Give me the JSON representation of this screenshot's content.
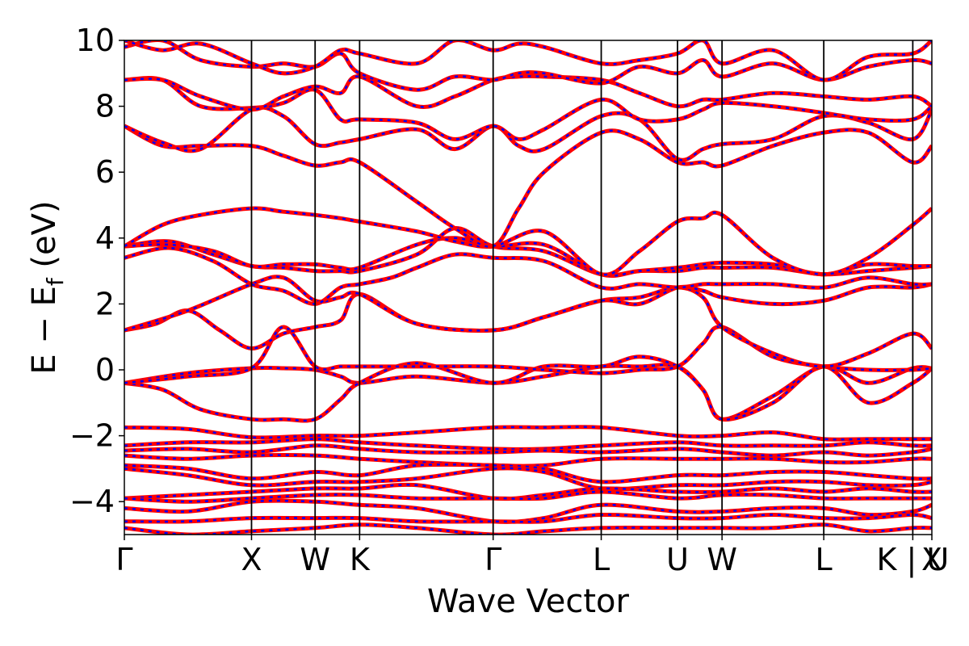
{
  "chart_data": {
    "type": "line",
    "title": "",
    "xlabel": "Wave Vector",
    "ylabel": "E − E",
    "ylabel_subscript": "f",
    "ylabel_unit": " (eV)",
    "ylim": [
      -5,
      10
    ],
    "yticks": [
      -4,
      -2,
      0,
      2,
      4,
      6,
      8,
      10
    ],
    "ytick_labels": [
      "−4",
      "−2",
      "0",
      "2",
      "4",
      "6",
      "8",
      "10"
    ],
    "xticks": [
      0,
      1,
      1.5,
      1.85,
      2.9,
      3.75,
      4.35,
      4.7,
      5.5,
      6.2,
      6.35
    ],
    "xtick_labels": [
      "Γ",
      "X",
      "W",
      "K",
      "Γ",
      "L",
      "U",
      "W",
      "L",
      "K | U",
      "X"
    ],
    "xlim": [
      0,
      6.35
    ],
    "grid": false,
    "legend": "none",
    "colors": {
      "band_solid": "#ff0000",
      "band_dashed": "#0000ff",
      "frame": "#000000"
    },
    "series": [
      {
        "x": [
          0,
          0.5,
          1,
          1.25,
          1.5,
          1.7,
          1.85,
          2.3,
          2.9,
          3.3,
          3.75,
          4.05,
          4.35,
          4.55,
          4.7,
          5.1,
          5.5,
          5.85,
          6.2,
          6.35
        ],
        "values": [
          -0.4,
          -0.1,
          0.05,
          0.05,
          0.0,
          -0.2,
          -0.4,
          -0.2,
          -0.4,
          -0.2,
          0.1,
          0.1,
          0.1,
          -0.6,
          -1.5,
          -0.8,
          0.1,
          -0.4,
          0.05,
          0.05
        ]
      },
      {
        "x": [
          0,
          0.3,
          0.6,
          1,
          1.25,
          1.5,
          1.7,
          1.85,
          2.3,
          2.9,
          3.3,
          3.75,
          4.05,
          4.35,
          4.55,
          4.7,
          5.1,
          5.5,
          5.85,
          6.2,
          6.35
        ],
        "values": [
          -0.4,
          -0.6,
          -1.2,
          -1.5,
          -1.5,
          -1.5,
          -0.9,
          -0.4,
          0.2,
          -0.4,
          0.1,
          0.1,
          0.4,
          0.1,
          -0.6,
          -1.5,
          -1.0,
          0.1,
          -1.0,
          -0.4,
          0.05
        ]
      },
      {
        "x": [
          0,
          0.5,
          1,
          1.25,
          1.5,
          1.7,
          1.85,
          2.3,
          2.9,
          3.3,
          3.75,
          4.05,
          4.35,
          4.55,
          4.7,
          5.1,
          5.5,
          5.85,
          6.2,
          6.35
        ],
        "values": [
          -0.4,
          -0.2,
          0.05,
          1.3,
          0.1,
          0.1,
          0.1,
          0.1,
          0.1,
          0.0,
          -0.1,
          0.0,
          0.1,
          0.8,
          1.3,
          0.4,
          0.1,
          0.0,
          0.0,
          0.05
        ]
      },
      {
        "x": [
          0,
          0.25,
          0.5,
          0.75,
          1,
          1.25,
          1.5,
          1.7,
          1.85,
          2.3,
          2.9,
          3.3,
          3.75,
          4.05,
          4.35,
          4.55,
          4.7,
          5.1,
          5.5,
          5.85,
          6.2,
          6.35
        ],
        "values": [
          1.2,
          1.4,
          1.8,
          1.2,
          0.65,
          1.1,
          1.3,
          1.5,
          2.3,
          1.4,
          1.2,
          1.6,
          2.1,
          2.2,
          2.5,
          2.2,
          1.3,
          0.5,
          0.1,
          0.5,
          1.1,
          0.65
        ]
      },
      {
        "x": [
          0,
          0.5,
          1,
          1.25,
          1.5,
          1.7,
          1.85,
          2.3,
          2.9,
          3.3,
          3.75,
          4.05,
          4.35,
          4.55,
          4.7,
          5.1,
          5.5,
          5.85,
          6.2,
          6.35
        ],
        "values": [
          1.2,
          1.8,
          2.6,
          2.8,
          2.1,
          2.2,
          2.3,
          1.4,
          1.2,
          1.6,
          2.1,
          2.0,
          2.5,
          2.4,
          2.2,
          2.0,
          2.1,
          2.5,
          2.5,
          2.6
        ]
      },
      {
        "x": [
          0,
          0.35,
          0.7,
          1,
          1.25,
          1.5,
          1.7,
          1.85,
          2.1,
          2.3,
          2.6,
          2.9,
          3.3,
          3.75,
          4.05,
          4.35,
          4.55,
          4.7,
          5.1,
          5.5,
          5.85,
          6.2,
          6.35
        ],
        "values": [
          3.4,
          3.7,
          3.3,
          2.6,
          2.4,
          2.0,
          2.5,
          2.6,
          2.8,
          3.1,
          3.5,
          3.4,
          3.3,
          2.5,
          2.6,
          2.5,
          2.6,
          2.6,
          2.6,
          2.5,
          2.8,
          2.6,
          2.6
        ]
      },
      {
        "x": [
          0,
          0.35,
          0.7,
          1,
          1.25,
          1.5,
          1.7,
          1.85,
          2.3,
          2.6,
          2.9,
          3.3,
          3.75,
          4.05,
          4.35,
          4.55,
          4.7,
          5.1,
          5.5,
          5.85,
          6.2,
          6.35
        ],
        "values": [
          3.75,
          3.9,
          3.5,
          3.15,
          3.1,
          3.0,
          3.0,
          3.0,
          3.5,
          4.3,
          3.75,
          3.6,
          2.9,
          3.0,
          3.0,
          3.1,
          3.1,
          3.1,
          2.9,
          3.0,
          3.1,
          3.15
        ]
      },
      {
        "x": [
          0,
          0.35,
          0.7,
          1,
          1.25,
          1.5,
          1.7,
          1.85,
          2.3,
          2.6,
          2.9,
          3.3,
          3.75,
          4.05,
          4.35,
          4.55,
          4.7,
          5.1,
          5.5,
          5.85,
          6.2,
          6.35
        ],
        "values": [
          3.75,
          3.8,
          3.6,
          3.15,
          3.2,
          3.2,
          3.1,
          3.1,
          3.8,
          4.0,
          3.75,
          3.8,
          2.9,
          3.0,
          3.1,
          3.2,
          3.25,
          3.2,
          2.9,
          3.2,
          3.15,
          3.15
        ]
      },
      {
        "x": [
          0,
          0.3,
          0.6,
          1,
          1.25,
          1.5,
          1.7,
          1.85,
          2.3,
          2.6,
          2.9,
          3.3,
          3.75,
          4.05,
          4.35,
          4.55,
          4.7,
          5.1,
          5.5,
          5.85,
          6.2,
          6.35
        ],
        "values": [
          3.75,
          4.4,
          4.7,
          4.9,
          4.8,
          4.7,
          4.6,
          4.5,
          4.2,
          3.9,
          3.75,
          4.2,
          2.9,
          3.6,
          4.5,
          4.6,
          4.7,
          3.4,
          2.9,
          3.4,
          4.4,
          4.9
        ]
      },
      {
        "x": [
          0,
          0.3,
          0.6,
          1,
          1.25,
          1.5,
          1.7,
          1.85,
          2.3,
          2.6,
          2.9,
          3.1,
          3.3,
          3.75,
          4.05,
          4.35,
          4.55,
          4.7,
          5.1,
          5.5,
          5.85,
          6.2,
          6.35
        ],
        "values": [
          7.4,
          6.8,
          6.8,
          6.8,
          6.5,
          6.2,
          6.3,
          6.3,
          5.1,
          4.3,
          3.75,
          4.9,
          6.0,
          7.2,
          7.0,
          6.3,
          6.3,
          6.2,
          6.8,
          7.2,
          7.2,
          6.3,
          6.8
        ]
      },
      {
        "x": [
          0,
          0.3,
          0.6,
          1,
          1.25,
          1.5,
          1.7,
          1.85,
          2.3,
          2.6,
          2.9,
          3.1,
          3.3,
          3.75,
          4.05,
          4.35,
          4.55,
          4.7,
          5.1,
          5.5,
          5.85,
          6.2,
          6.35
        ],
        "values": [
          7.4,
          6.9,
          6.7,
          7.9,
          7.7,
          6.85,
          6.9,
          7.0,
          7.3,
          6.7,
          7.4,
          6.8,
          6.7,
          7.7,
          7.6,
          6.4,
          6.7,
          6.85,
          7.0,
          7.7,
          7.5,
          7.0,
          7.9
        ]
      },
      {
        "x": [
          0,
          0.3,
          0.6,
          1,
          1.25,
          1.5,
          1.7,
          1.85,
          2.3,
          2.6,
          2.9,
          3.1,
          3.3,
          3.75,
          4.05,
          4.35,
          4.55,
          4.7,
          5.1,
          5.5,
          5.85,
          6.2,
          6.35
        ],
        "values": [
          8.8,
          8.8,
          8.0,
          7.95,
          8.1,
          8.5,
          7.6,
          7.6,
          7.5,
          7.0,
          7.4,
          7.0,
          7.3,
          8.2,
          7.6,
          7.6,
          7.9,
          8.1,
          8.0,
          7.8,
          7.6,
          7.6,
          8.0
        ]
      },
      {
        "x": [
          0,
          0.3,
          0.6,
          1,
          1.25,
          1.5,
          1.7,
          1.85,
          2.3,
          2.6,
          2.9,
          3.1,
          3.3,
          3.75,
          4.05,
          4.35,
          4.55,
          4.7,
          5.1,
          5.5,
          5.85,
          6.2,
          6.35
        ],
        "values": [
          8.8,
          8.8,
          8.3,
          7.9,
          8.3,
          8.6,
          8.4,
          8.9,
          8.0,
          8.3,
          8.8,
          8.9,
          8.9,
          8.8,
          8.4,
          8.0,
          8.2,
          8.2,
          8.4,
          8.3,
          8.2,
          8.3,
          8.0
        ]
      },
      {
        "x": [
          0,
          0.3,
          0.6,
          1,
          1.25,
          1.5,
          1.7,
          1.85,
          2.3,
          2.6,
          2.9,
          3.1,
          3.3,
          3.75,
          4.05,
          4.35,
          4.55,
          4.7,
          5.1,
          5.5,
          5.85,
          6.2,
          6.35
        ],
        "values": [
          9.8,
          10.0,
          9.4,
          9.2,
          9.3,
          9.2,
          9.6,
          9.0,
          8.5,
          8.9,
          8.8,
          9.0,
          9.0,
          8.7,
          9.2,
          9.0,
          9.4,
          8.9,
          9.3,
          8.8,
          9.2,
          9.4,
          9.3
        ]
      },
      {
        "x": [
          0,
          0.3,
          0.6,
          1,
          1.25,
          1.5,
          1.7,
          1.85,
          2.3,
          2.6,
          2.9,
          3.1,
          3.3,
          3.75,
          4.05,
          4.35,
          4.55,
          4.7,
          5.1,
          5.5,
          5.85,
          6.2,
          6.35
        ],
        "values": [
          10.0,
          9.7,
          9.9,
          9.3,
          9.0,
          9.2,
          9.7,
          9.6,
          9.3,
          10.0,
          9.7,
          9.9,
          9.8,
          9.3,
          9.4,
          9.6,
          10.0,
          9.3,
          9.7,
          8.8,
          9.5,
          9.6,
          10.0
        ]
      },
      {
        "x": [
          0,
          0.5,
          1,
          1.5,
          1.85,
          2.3,
          2.9,
          3.3,
          3.75,
          4.35,
          4.7,
          5.1,
          5.5,
          5.85,
          6.2,
          6.35
        ],
        "values": [
          -1.75,
          -1.8,
          -2.05,
          -2.0,
          -2.0,
          -1.9,
          -1.75,
          -1.75,
          -1.75,
          -2.0,
          -2.0,
          -1.9,
          -2.1,
          -2.1,
          -2.1,
          -2.1
        ]
      },
      {
        "x": [
          0,
          0.5,
          1,
          1.5,
          1.85,
          2.3,
          2.9,
          3.3,
          3.75,
          4.35,
          4.7,
          5.1,
          5.5,
          5.85,
          6.2,
          6.35
        ],
        "values": [
          -2.3,
          -2.2,
          -2.2,
          -2.1,
          -2.2,
          -2.3,
          -2.4,
          -2.4,
          -2.3,
          -2.2,
          -2.3,
          -2.3,
          -2.3,
          -2.2,
          -2.3,
          -2.3
        ]
      },
      {
        "x": [
          0,
          0.5,
          1,
          1.5,
          1.85,
          2.3,
          2.9,
          3.3,
          3.75,
          4.35,
          4.7,
          5.1,
          5.5,
          5.85,
          6.2,
          6.35
        ],
        "values": [
          -2.45,
          -2.4,
          -2.5,
          -2.3,
          -2.4,
          -2.5,
          -2.5,
          -2.45,
          -2.5,
          -2.4,
          -2.5,
          -2.6,
          -2.5,
          -2.6,
          -2.5,
          -2.4
        ]
      },
      {
        "x": [
          0,
          0.5,
          1,
          1.5,
          1.85,
          2.3,
          2.9,
          3.3,
          3.75,
          4.35,
          4.7,
          5.1,
          5.5,
          5.85,
          6.2,
          6.35
        ],
        "values": [
          -2.6,
          -2.7,
          -2.6,
          -2.6,
          -2.7,
          -2.8,
          -2.9,
          -2.9,
          -2.7,
          -2.7,
          -2.7,
          -2.7,
          -2.8,
          -2.8,
          -2.7,
          -2.7
        ]
      },
      {
        "x": [
          0,
          0.5,
          1,
          1.5,
          1.85,
          2.3,
          2.9,
          3.3,
          3.75,
          4.35,
          4.7,
          5.1,
          5.5,
          5.85,
          6.2,
          6.35
        ],
        "values": [
          -2.9,
          -3.0,
          -3.3,
          -3.1,
          -3.2,
          -2.9,
          -2.9,
          -3.0,
          -3.4,
          -3.2,
          -3.2,
          -3.1,
          -3.1,
          -3.2,
          -3.3,
          -3.3
        ]
      },
      {
        "x": [
          0,
          0.5,
          1,
          1.5,
          1.85,
          2.3,
          2.9,
          3.3,
          3.75,
          4.35,
          4.7,
          5.1,
          5.5,
          5.85,
          6.2,
          6.35
        ],
        "values": [
          -3.0,
          -3.2,
          -3.5,
          -3.4,
          -3.4,
          -3.3,
          -3.0,
          -3.1,
          -3.6,
          -3.5,
          -3.5,
          -3.4,
          -3.4,
          -3.5,
          -3.5,
          -3.4
        ]
      },
      {
        "x": [
          0,
          0.5,
          1,
          1.5,
          1.85,
          2.3,
          2.9,
          3.3,
          3.75,
          4.35,
          4.7,
          5.1,
          5.5,
          5.85,
          6.2,
          6.35
        ],
        "values": [
          -3.9,
          -3.8,
          -3.7,
          -3.6,
          -3.6,
          -3.5,
          -3.9,
          -3.8,
          -3.6,
          -3.7,
          -3.7,
          -3.6,
          -3.7,
          -3.6,
          -3.7,
          -3.7
        ]
      },
      {
        "x": [
          0,
          0.5,
          1,
          1.5,
          1.85,
          2.3,
          2.9,
          3.3,
          3.75,
          4.35,
          4.7,
          5.1,
          5.5,
          5.85,
          6.2,
          6.35
        ],
        "values": [
          -3.9,
          -4.0,
          -3.9,
          -3.8,
          -3.8,
          -3.9,
          -3.9,
          -3.9,
          -3.7,
          -3.9,
          -3.8,
          -3.8,
          -3.9,
          -3.9,
          -3.9,
          -3.9
        ]
      },
      {
        "x": [
          0,
          0.5,
          1,
          1.5,
          1.85,
          2.3,
          2.9,
          3.3,
          3.75,
          4.35,
          4.7,
          5.1,
          5.5,
          5.85,
          6.2,
          6.35
        ],
        "values": [
          -4.2,
          -4.3,
          -4.0,
          -4.0,
          -4.1,
          -4.2,
          -4.6,
          -4.5,
          -4.1,
          -4.3,
          -4.3,
          -4.2,
          -4.2,
          -4.4,
          -4.3,
          -4.1
        ]
      },
      {
        "x": [
          0,
          0.5,
          1,
          1.5,
          1.85,
          2.3,
          2.9,
          3.3,
          3.75,
          4.35,
          4.7,
          5.1,
          5.5,
          5.85,
          6.2,
          6.35
        ],
        "values": [
          -4.6,
          -4.6,
          -4.5,
          -4.5,
          -4.5,
          -4.6,
          -4.6,
          -4.6,
          -4.4,
          -4.5,
          -4.5,
          -4.4,
          -4.5,
          -4.5,
          -4.4,
          -4.5
        ]
      },
      {
        "x": [
          0,
          0.5,
          1,
          1.5,
          1.85,
          2.3,
          2.9,
          3.3,
          3.75,
          4.35,
          4.7,
          5.1,
          5.5,
          5.85,
          6.2,
          6.35
        ],
        "values": [
          -4.8,
          -5.0,
          -4.9,
          -4.8,
          -4.7,
          -4.8,
          -5.0,
          -4.9,
          -4.8,
          -4.8,
          -4.8,
          -4.8,
          -4.7,
          -4.9,
          -4.8,
          -4.8
        ]
      }
    ]
  }
}
